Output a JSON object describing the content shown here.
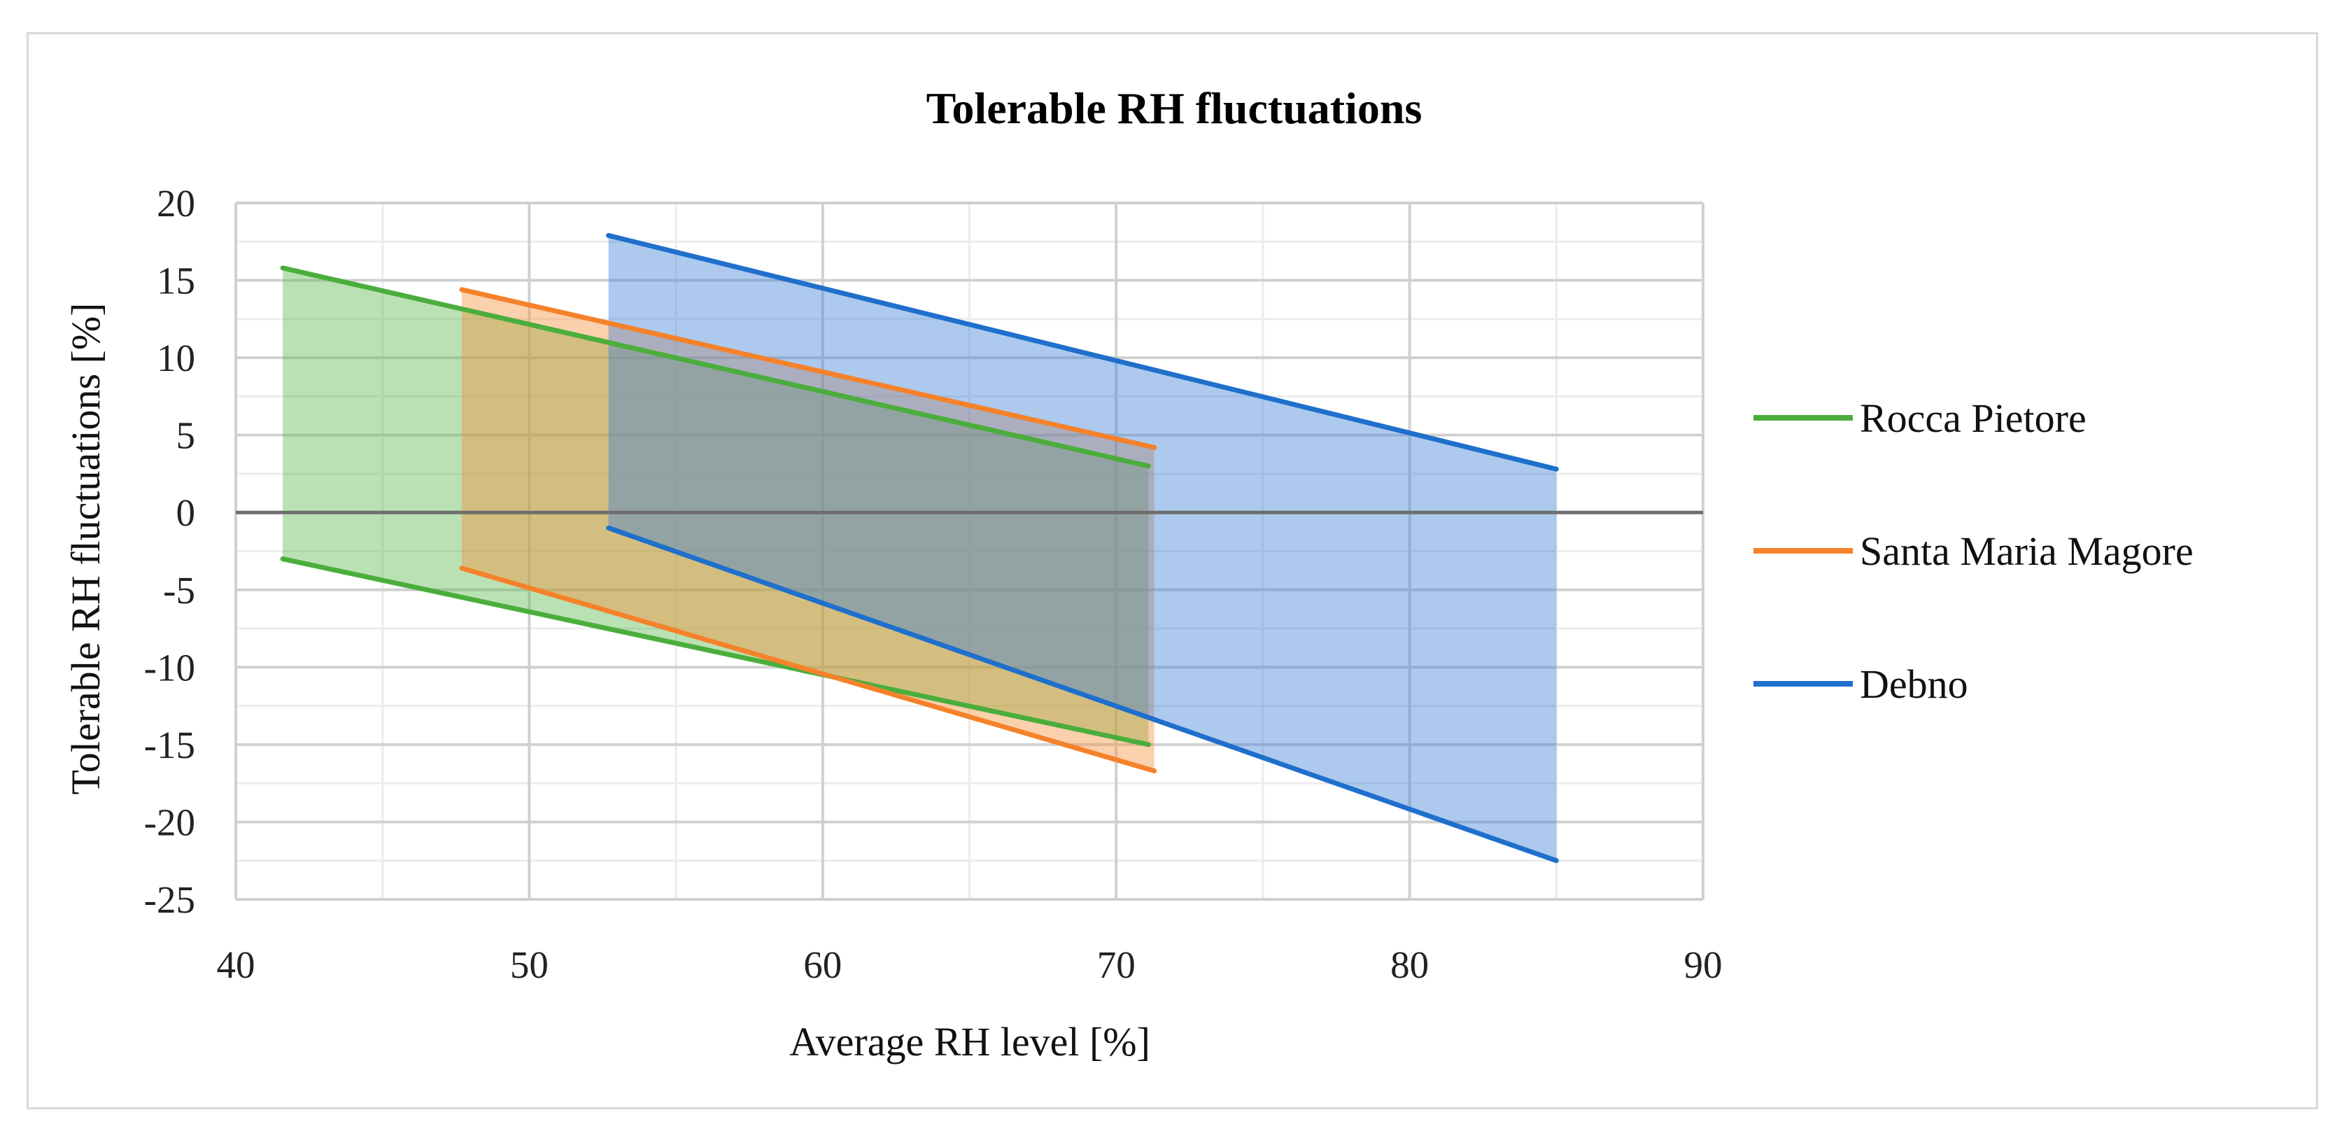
{
  "chart_data": {
    "type": "area",
    "title": "Tolerable RH fluctuations",
    "xlabel": "Average RH level [%]",
    "ylabel": "Tolerable RH fluctuations  [%]",
    "xlim": [
      40,
      90
    ],
    "ylim": [
      -25,
      20
    ],
    "x_ticks": [
      "40",
      "50",
      "60",
      "70",
      "80",
      "90"
    ],
    "y_ticks": [
      "20",
      "15",
      "10",
      "5",
      "0",
      "-5",
      "-10",
      "-15",
      "-20",
      "-25"
    ],
    "grid": true,
    "legend_position": "right",
    "series": [
      {
        "name": "Rocca Pietore",
        "color": "#4aad3c",
        "fill": "#5ab84a",
        "upper": [
          [
            41.6,
            15.8
          ],
          [
            71.1,
            3.0
          ]
        ],
        "lower": [
          [
            41.6,
            -3.0
          ],
          [
            71.1,
            -15.0
          ]
        ]
      },
      {
        "name": "Santa Maria Magore",
        "color": "#f5822a",
        "fill": "#f5903a",
        "upper": [
          [
            47.7,
            14.4
          ],
          [
            71.3,
            4.2
          ]
        ],
        "lower": [
          [
            47.7,
            -3.6
          ],
          [
            71.3,
            -16.7
          ]
        ]
      },
      {
        "name": "Debno",
        "color": "#1f6fcc",
        "fill": "#3b7fd6",
        "upper": [
          [
            52.7,
            17.9
          ],
          [
            85.0,
            2.8
          ]
        ],
        "lower": [
          [
            52.7,
            -1.0
          ],
          [
            85.0,
            -22.5
          ]
        ]
      }
    ]
  }
}
